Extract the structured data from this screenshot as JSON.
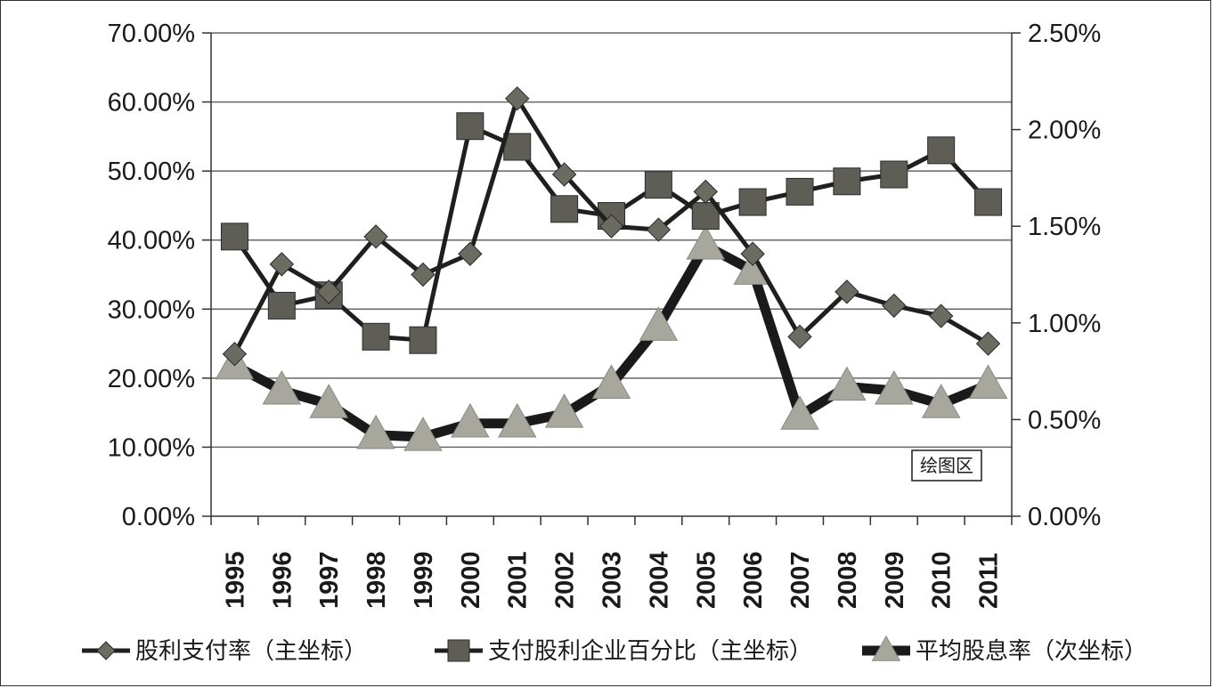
{
  "chart_data": {
    "type": "line",
    "categories": [
      "1995",
      "1996",
      "1997",
      "1998",
      "1999",
      "2000",
      "2001",
      "2002",
      "2003",
      "2004",
      "2005",
      "2006",
      "2007",
      "2008",
      "2009",
      "2010",
      "2011"
    ],
    "series": [
      {
        "name": "股利支付率（主坐标）",
        "axis": "primary",
        "marker": "diamond",
        "color": "#6b6b62",
        "line_color": "#1f1f1f",
        "values": [
          23.5,
          36.5,
          32.5,
          40.5,
          35.0,
          38.0,
          60.5,
          49.5,
          42.0,
          41.5,
          47.0,
          38.0,
          26.0,
          32.5,
          30.5,
          29.0,
          25.0
        ]
      },
      {
        "name": "支付股利企业百分比（主坐标）",
        "axis": "primary",
        "marker": "square",
        "color": "#5e5e57",
        "line_color": "#1f1f1f",
        "values": [
          40.5,
          30.5,
          32.0,
          26.0,
          25.5,
          56.5,
          53.5,
          44.5,
          43.5,
          48.0,
          43.5,
          45.5,
          47.0,
          48.5,
          49.5,
          53.0,
          45.5
        ]
      },
      {
        "name": "平均股息率（次坐标）",
        "axis": "secondary",
        "marker": "triangle",
        "color": "#a7a79e",
        "line_color": "#1a1a1a",
        "values": [
          0.78,
          0.65,
          0.58,
          0.42,
          0.41,
          0.48,
          0.48,
          0.53,
          0.68,
          0.98,
          1.4,
          1.27,
          0.52,
          0.67,
          0.65,
          0.58,
          0.68
        ]
      }
    ],
    "primary_axis": {
      "ylim": [
        0,
        70
      ],
      "step": 10,
      "tick_labels": [
        "0.00%",
        "10.00%",
        "20.00%",
        "30.00%",
        "40.00%",
        "50.00%",
        "60.00%",
        "70.00%"
      ]
    },
    "secondary_axis": {
      "ylim": [
        0,
        2.5
      ],
      "step": 0.5,
      "tick_labels": [
        "0.00%",
        "0.50%",
        "1.00%",
        "1.50%",
        "2.00%",
        "2.50%"
      ]
    },
    "plot_area_label": "绘图区",
    "grid": true,
    "legend_position": "bottom"
  }
}
